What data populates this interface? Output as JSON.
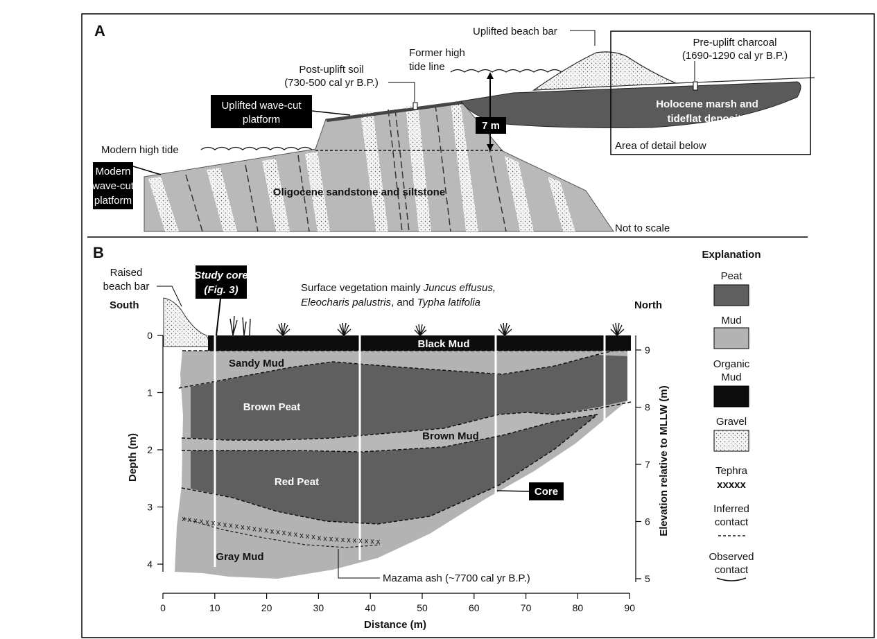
{
  "panel_a": {
    "letter": "A",
    "uplifted_beach_bar": "Uplifted beach bar",
    "pre_uplift_charcoal_1": "Pre-uplift charcoal",
    "pre_uplift_charcoal_2": "(1690-1290 cal yr B.P.)",
    "former_high_tide_1": "Former high",
    "former_high_tide_2": "tide line",
    "post_uplift_soil_1": "Post-uplift soil",
    "post_uplift_soil_2": "(730-500 cal yr B.P.)",
    "uplifted_platform_1": "Uplifted wave-cut",
    "uplifted_platform_2": "platform",
    "uplift_amount": "7 m",
    "holocene_1": "Holocene marsh and",
    "holocene_2": "tideflat deposits",
    "modern_high_tide": "Modern high tide",
    "area_of_detail": "Area of detail below",
    "modern_platform_1": "Modern",
    "modern_platform_2": "wave-cut",
    "modern_platform_3": "platform",
    "oligocene": "Oligocene sandstone and siltstone",
    "not_to_scale": "Not to scale"
  },
  "panel_b": {
    "letter": "B",
    "raised_beach_bar_1": "Raised",
    "raised_beach_bar_2": "beach bar",
    "study_core_1": "Study core",
    "study_core_2": "(Fig. 3)",
    "vegetation_1_pre": "Surface vegetation mainly ",
    "vegetation_1_it": "Juncus effusus,",
    "vegetation_2_it1": "Eleocharis palustris",
    "vegetation_2_mid": ", and ",
    "vegetation_2_it2": "Typha latifolia",
    "south": "South",
    "north": "North",
    "black_mud": "Black Mud",
    "sandy_mud": "Sandy Mud",
    "brown_peat": "Brown Peat",
    "brown_mud": "Brown Mud",
    "red_peat": "Red Peat",
    "gray_mud": "Gray Mud",
    "core": "Core",
    "mazama": "Mazama ash (~7700 cal yr B.P.)",
    "x_axis_label": "Distance (m)",
    "y_left_label": "Depth (m)",
    "y_right_label": "Elevation relative to MLLW (m)",
    "x_ticks": [
      "0",
      "10",
      "20",
      "30",
      "40",
      "50",
      "60",
      "70",
      "80",
      "90"
    ],
    "depth_ticks": [
      "0",
      "1",
      "2",
      "3",
      "4"
    ],
    "elev_ticks": [
      "9",
      "8",
      "7",
      "6",
      "5"
    ]
  },
  "legend": {
    "title": "Explanation",
    "peat": "Peat",
    "mud": "Mud",
    "organic_1": "Organic",
    "organic_2": "Mud",
    "gravel": "Gravel",
    "tephra": "Tephra",
    "tephra_symbol": "xxxxx",
    "inferred_1": "Inferred",
    "inferred_2": "contact",
    "observed_1": "Observed",
    "observed_2": "contact"
  },
  "colors": {
    "peat": "#5f5f5f",
    "mud": "#b3b3b3",
    "organic_mud": "#0c0c0c",
    "rock": "#b9b9b9"
  }
}
